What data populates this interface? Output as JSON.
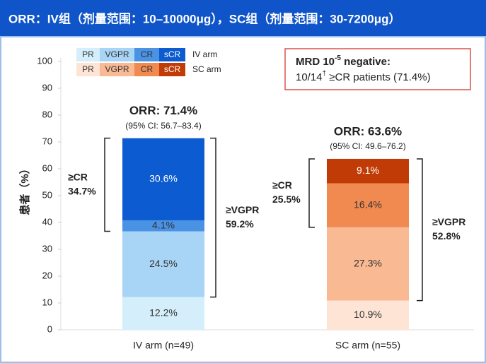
{
  "chart_data": {
    "type": "stacked_bar",
    "title": "ORR：IV组（剂量范围：10–10000μg），SC组（剂量范围：30-7200μg）",
    "y_label": "患者（%）",
    "categories": [
      "IV arm (n=49)",
      "SC arm (n=55)"
    ],
    "legend_labels": [
      "IV arm",
      "SC arm"
    ],
    "series": [
      {
        "name": "PR",
        "colors": [
          "#d4effb",
          "#fde4d5"
        ],
        "values": [
          12.2,
          10.9
        ],
        "value_labels": [
          "12.2%",
          "10.9%"
        ]
      },
      {
        "name": "VGPR",
        "colors": [
          "#a8d4f5",
          "#f8b993"
        ],
        "values": [
          24.5,
          27.3
        ],
        "value_labels": [
          "24.5%",
          "27.3%"
        ]
      },
      {
        "name": "CR",
        "colors": [
          "#4a92e4",
          "#f08a50"
        ],
        "values": [
          4.1,
          16.4
        ],
        "value_labels": [
          "4.1%",
          "16.4%"
        ]
      },
      {
        "name": "sCR",
        "colors": [
          "#0c5bd0",
          "#c13b07"
        ],
        "values": [
          30.6,
          9.1
        ],
        "value_labels": [
          "30.6%",
          "9.1%"
        ]
      }
    ],
    "ylim": [
      0,
      100
    ],
    "yticks": [
      0,
      10,
      20,
      30,
      40,
      50,
      60,
      70,
      80,
      90,
      100
    ],
    "annotations": [
      {
        "orr": "ORR: 71.4%",
        "ci": "(95% CI: 56.7–83.4)",
        "cr_label": "≥CR",
        "cr_value": "34.7%",
        "vgpr_label": "≥VGPR",
        "vgpr_value": "59.2%"
      },
      {
        "orr": "ORR: 63.6%",
        "ci": "(95% CI: 49.6–76.2)",
        "cr_label": "≥CR",
        "cr_value": "25.5%",
        "vgpr_label": "≥VGPR",
        "vgpr_value": "52.8%"
      }
    ],
    "mrd_box": {
      "line1": [
        "MRD 10",
        "-5",
        " negative:"
      ],
      "line2": [
        "10/14",
        "†",
        " ≥CR patients (71.4%)"
      ]
    }
  }
}
